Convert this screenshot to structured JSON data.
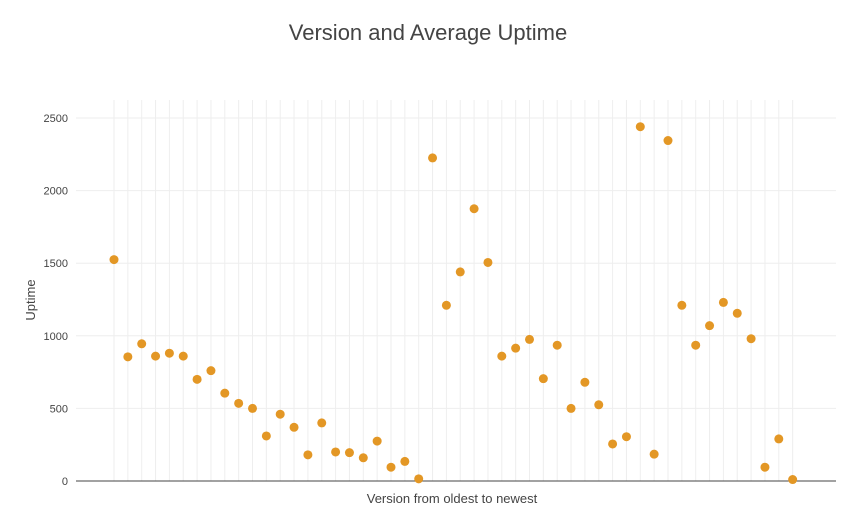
{
  "chart_data": {
    "type": "scatter",
    "title": "Version and Average Uptime",
    "xlabel": "Version from oldest to newest",
    "ylabel": "Uptime",
    "ylim": [
      0,
      2600
    ],
    "yticks": [
      0,
      500,
      1000,
      1500,
      2000,
      2500
    ],
    "grid": true,
    "marker_color": "#e39725",
    "series": [
      {
        "values": [
          1525,
          855,
          945,
          860,
          880,
          860,
          700,
          760,
          605,
          535,
          500,
          310,
          460,
          370,
          180,
          400,
          200,
          195,
          160,
          275,
          95,
          135,
          15,
          2225,
          1210,
          1440,
          1875,
          1505,
          860,
          915,
          975,
          705,
          935,
          500,
          680,
          525,
          255,
          305,
          2440,
          185,
          2345,
          1210,
          935,
          1070,
          1230,
          1155,
          980,
          95,
          290,
          10
        ]
      }
    ]
  }
}
